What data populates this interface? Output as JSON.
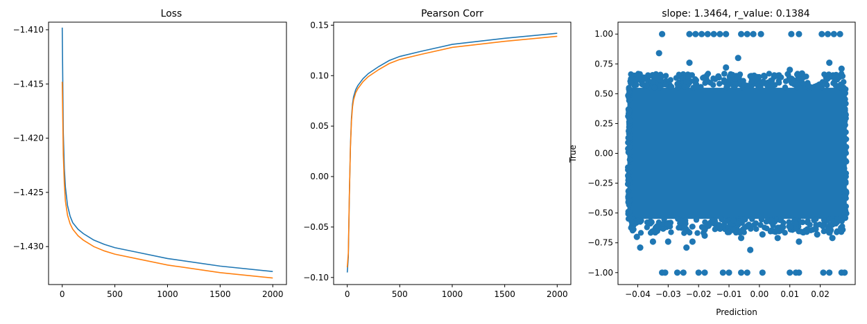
{
  "colors": {
    "blue": "#1f77b4",
    "orange": "#ff7f0e"
  },
  "chart_data": [
    {
      "type": "line",
      "title": "Loss",
      "xlabel": "",
      "ylabel": "",
      "xlim": [
        -130,
        2130
      ],
      "ylim": [
        -1.4335,
        -1.4093
      ],
      "xticks": [
        0,
        500,
        1000,
        1500,
        2000
      ],
      "xtick_labels": [
        "0",
        "500",
        "1000",
        "1500",
        "2000"
      ],
      "yticks": [
        -1.43,
        -1.425,
        -1.42,
        -1.415,
        -1.41
      ],
      "ytick_labels": [
        "−1.430",
        "−1.425",
        "−1.420",
        "−1.415",
        "−1.410"
      ],
      "grid": false,
      "series": [
        {
          "color": "#1f77b4",
          "x": [
            0,
            10,
            20,
            30,
            50,
            75,
            100,
            150,
            200,
            300,
            400,
            500,
            700,
            1000,
            1500,
            2000
          ],
          "y": [
            -1.4098,
            -1.4195,
            -1.4228,
            -1.4245,
            -1.4262,
            -1.4272,
            -1.4278,
            -1.4284,
            -1.4288,
            -1.4294,
            -1.4298,
            -1.4301,
            -1.4305,
            -1.4311,
            -1.4318,
            -1.4323
          ]
        },
        {
          "color": "#ff7f0e",
          "x": [
            0,
            10,
            20,
            30,
            50,
            75,
            100,
            150,
            200,
            300,
            400,
            500,
            700,
            1000,
            1500,
            2000
          ],
          "y": [
            -1.4148,
            -1.4215,
            -1.4242,
            -1.4258,
            -1.4271,
            -1.4279,
            -1.4284,
            -1.429,
            -1.4294,
            -1.43,
            -1.4304,
            -1.4307,
            -1.4311,
            -1.4317,
            -1.4324,
            -1.4329
          ]
        }
      ]
    },
    {
      "type": "line",
      "title": "Pearson Corr",
      "xlabel": "",
      "ylabel": "",
      "xlim": [
        -130,
        2130
      ],
      "ylim": [
        -0.107,
        0.153
      ],
      "xticks": [
        0,
        500,
        1000,
        1500,
        2000
      ],
      "xtick_labels": [
        "0",
        "500",
        "1000",
        "1500",
        "2000"
      ],
      "yticks": [
        -0.1,
        -0.05,
        0.0,
        0.05,
        0.1,
        0.15
      ],
      "ytick_labels": [
        "−0.10",
        "−0.05",
        "0.00",
        "0.05",
        "0.10",
        "0.15"
      ],
      "grid": false,
      "series": [
        {
          "color": "#1f77b4",
          "x": [
            0,
            10,
            20,
            30,
            40,
            50,
            60,
            80,
            100,
            150,
            200,
            300,
            400,
            500,
            700,
            1000,
            1500,
            2000
          ],
          "y": [
            -0.095,
            -0.08,
            -0.02,
            0.03,
            0.058,
            0.072,
            0.079,
            0.086,
            0.09,
            0.097,
            0.102,
            0.109,
            0.115,
            0.119,
            0.124,
            0.131,
            0.137,
            0.142
          ]
        },
        {
          "color": "#ff7f0e",
          "x": [
            0,
            10,
            20,
            30,
            40,
            50,
            60,
            80,
            100,
            150,
            200,
            300,
            400,
            500,
            700,
            1000,
            1500,
            2000
          ],
          "y": [
            -0.09,
            -0.076,
            -0.018,
            0.028,
            0.055,
            0.069,
            0.076,
            0.083,
            0.087,
            0.094,
            0.099,
            0.106,
            0.112,
            0.116,
            0.121,
            0.128,
            0.134,
            0.139
          ]
        }
      ]
    },
    {
      "type": "scatter",
      "title": "slope: 1.3464, r_value: 0.1384",
      "xlabel": "Prediction",
      "ylabel": "True",
      "xlim": [
        -0.0465,
        0.0315
      ],
      "ylim": [
        -1.1,
        1.1
      ],
      "xticks": [
        -0.04,
        -0.03,
        -0.02,
        -0.01,
        0.0,
        0.01,
        0.02
      ],
      "xtick_labels": [
        "−0.04",
        "−0.03",
        "−0.02",
        "−0.01",
        "0.00",
        "0.01",
        "0.02"
      ],
      "yticks": [
        -1.0,
        -0.75,
        -0.5,
        -0.25,
        0.0,
        0.25,
        0.5,
        0.75,
        1.0
      ],
      "ytick_labels": [
        "−1.00",
        "−0.75",
        "−0.50",
        "−0.25",
        "0.00",
        "0.25",
        "0.50",
        "0.75",
        "1.00"
      ],
      "grid": false,
      "color": "#1f77b4",
      "dense_region": {
        "x": [
          -0.0425,
          0.0278
        ],
        "y": [
          -0.55,
          0.55
        ]
      },
      "points": [
        {
          "x": -0.0418,
          "y": -0.63
        },
        {
          "x": -0.0403,
          "y": -0.7
        },
        {
          "x": -0.0392,
          "y": -0.79
        },
        {
          "x": -0.0398,
          "y": 0.63
        },
        {
          "x": -0.0385,
          "y": 0.58
        },
        {
          "x": -0.0351,
          "y": 0.6
        },
        {
          "x": -0.033,
          "y": 0.84
        },
        {
          "x": -0.035,
          "y": -0.74
        },
        {
          "x": -0.03,
          "y": -0.74
        },
        {
          "x": -0.032,
          "y": 1.0
        },
        {
          "x": -0.023,
          "y": 1.0
        },
        {
          "x": -0.021,
          "y": 1.0
        },
        {
          "x": -0.019,
          "y": 1.0
        },
        {
          "x": -0.017,
          "y": 1.0
        },
        {
          "x": -0.015,
          "y": 1.0
        },
        {
          "x": -0.013,
          "y": 1.0
        },
        {
          "x": -0.011,
          "y": 1.0
        },
        {
          "x": -0.006,
          "y": 1.0
        },
        {
          "x": -0.004,
          "y": 1.0
        },
        {
          "x": -0.002,
          "y": 1.0
        },
        {
          "x": 0.0005,
          "y": 1.0
        },
        {
          "x": 0.0105,
          "y": 1.0
        },
        {
          "x": 0.013,
          "y": 1.0
        },
        {
          "x": 0.0205,
          "y": 1.0
        },
        {
          "x": 0.0225,
          "y": 1.0
        },
        {
          "x": 0.0245,
          "y": 1.0
        },
        {
          "x": 0.0265,
          "y": 1.0
        },
        {
          "x": -0.023,
          "y": 0.76
        },
        {
          "x": -0.011,
          "y": 0.72
        },
        {
          "x": -0.007,
          "y": 0.8
        },
        {
          "x": 0.0015,
          "y": 0.65
        },
        {
          "x": 0.01,
          "y": 0.7
        },
        {
          "x": 0.014,
          "y": 0.67
        },
        {
          "x": 0.023,
          "y": 0.76
        },
        {
          "x": 0.027,
          "y": 0.71
        },
        {
          "x": 0.025,
          "y": 0.64
        },
        {
          "x": -0.024,
          "y": -0.79
        },
        {
          "x": -0.022,
          "y": -0.74
        },
        {
          "x": -0.018,
          "y": -0.69
        },
        {
          "x": -0.006,
          "y": -0.71
        },
        {
          "x": -0.003,
          "y": -0.81
        },
        {
          "x": 0.001,
          "y": -0.68
        },
        {
          "x": 0.006,
          "y": -0.71
        },
        {
          "x": 0.013,
          "y": -0.74
        },
        {
          "x": 0.019,
          "y": -0.68
        },
        {
          "x": 0.024,
          "y": -0.71
        },
        {
          "x": 0.027,
          "y": -0.64
        },
        {
          "x": -0.01,
          "y": -0.66
        },
        {
          "x": -0.032,
          "y": -1.0
        },
        {
          "x": -0.031,
          "y": -1.0
        },
        {
          "x": -0.027,
          "y": -1.0
        },
        {
          "x": -0.025,
          "y": -1.0
        },
        {
          "x": -0.02,
          "y": -1.0
        },
        {
          "x": -0.018,
          "y": -1.0
        },
        {
          "x": -0.012,
          "y": -1.0
        },
        {
          "x": -0.01,
          "y": -1.0
        },
        {
          "x": -0.006,
          "y": -1.0
        },
        {
          "x": -0.004,
          "y": -1.0
        },
        {
          "x": 0.001,
          "y": -1.0
        },
        {
          "x": 0.01,
          "y": -1.0
        },
        {
          "x": 0.012,
          "y": -1.0
        },
        {
          "x": 0.013,
          "y": -1.0
        },
        {
          "x": 0.021,
          "y": -1.0
        },
        {
          "x": 0.023,
          "y": -1.0
        },
        {
          "x": 0.027,
          "y": -1.0
        },
        {
          "x": 0.028,
          "y": -1.0
        }
      ]
    }
  ]
}
